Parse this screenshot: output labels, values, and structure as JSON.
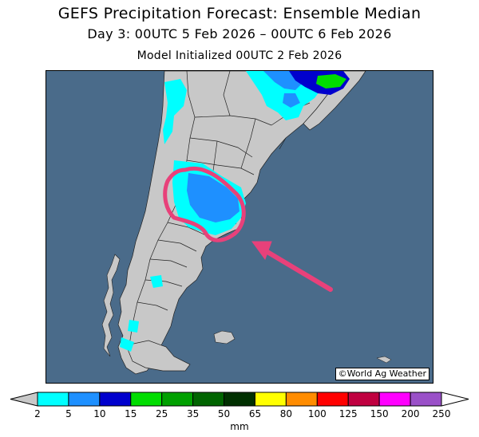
{
  "header": {
    "title": "GEFS Precipitation Forecast: Ensemble Median",
    "period": "Day 3: 00UTC 5 Feb 2026 – 00UTC 6 Feb 2026",
    "init": "Model Initialized 00UTC 2 Feb 2026"
  },
  "map": {
    "credit": "©World Ag Weather",
    "colors": {
      "ocean": "#4a6b8a",
      "land": "#c8c8c8",
      "annotation": "#e8417a"
    }
  },
  "legend": {
    "unit": "mm",
    "thresholds": [
      "2",
      "5",
      "10",
      "15",
      "25",
      "35",
      "50",
      "65",
      "80",
      "100",
      "125",
      "150",
      "200",
      "250"
    ],
    "colors": [
      "#00ffff",
      "#1e90ff",
      "#0000cd",
      "#00dd00",
      "#00a000",
      "#006400",
      "#003000",
      "#ffff00",
      "#ff8c00",
      "#ff0000",
      "#c00040",
      "#ff00ff",
      "#9a50c8"
    ],
    "under_color": "#c8c8c8",
    "over_color": "#ffffff"
  }
}
